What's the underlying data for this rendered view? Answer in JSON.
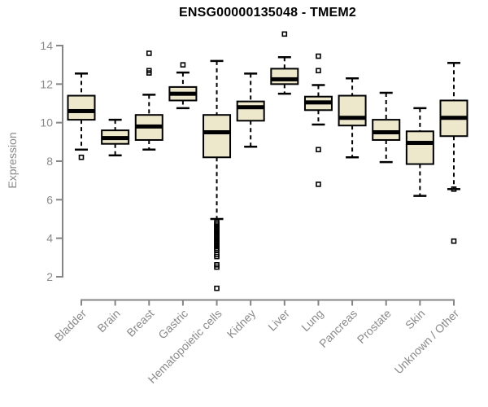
{
  "colors": {
    "box_fill": "#EDE8CC",
    "ink": "#000000",
    "axis": "#858585",
    "text_gray": "#8a8a8a"
  },
  "chart_data": {
    "type": "boxplot",
    "title": "ENSG00000135048 - TMEM2",
    "ylabel": "Expression",
    "xlabel": "",
    "ylim": [
      2,
      14
    ],
    "yticks": [
      2,
      4,
      6,
      8,
      10,
      12,
      14
    ],
    "grid": false,
    "legend": "none",
    "categories": [
      "Bladder",
      "Brain",
      "Breast",
      "Gastric",
      "Hematopoietic cells",
      "Kidney",
      "Liver",
      "Lung",
      "Pancreas",
      "Prostate",
      "Skin",
      "Unknown / Other"
    ],
    "series": [
      {
        "category": "Bladder",
        "whisker_low": 8.6,
        "q1": 10.15,
        "median": 10.6,
        "q3": 11.4,
        "whisker_high": 12.55,
        "outliers": [
          8.2
        ]
      },
      {
        "category": "Brain",
        "whisker_low": 8.3,
        "q1": 8.9,
        "median": 9.2,
        "q3": 9.6,
        "whisker_high": 10.15,
        "outliers": []
      },
      {
        "category": "Breast",
        "whisker_low": 8.6,
        "q1": 9.1,
        "median": 9.8,
        "q3": 10.4,
        "whisker_high": 11.45,
        "outliers": [
          13.6,
          12.7,
          12.58
        ]
      },
      {
        "category": "Gastric",
        "whisker_low": 10.75,
        "q1": 11.15,
        "median": 11.5,
        "q3": 11.85,
        "whisker_high": 12.6,
        "outliers": [
          13.0
        ]
      },
      {
        "category": "Hematopoietic cells",
        "whisker_low": 5.0,
        "q1": 8.2,
        "median": 9.5,
        "q3": 10.4,
        "whisker_high": 13.2,
        "outliers": [
          4.82,
          4.73,
          4.64,
          4.55,
          4.46,
          4.37,
          4.28,
          4.19,
          4.1,
          4.01,
          3.92,
          3.83,
          3.74,
          3.65,
          3.56,
          3.47,
          3.38,
          3.15,
          3.05,
          2.62,
          2.5,
          1.4
        ]
      },
      {
        "category": "Kidney",
        "whisker_low": 8.75,
        "q1": 10.1,
        "median": 10.8,
        "q3": 11.1,
        "whisker_high": 12.55,
        "outliers": []
      },
      {
        "category": "Liver",
        "whisker_low": 11.5,
        "q1": 12.0,
        "median": 12.25,
        "q3": 12.8,
        "whisker_high": 13.4,
        "outliers": [
          14.6
        ]
      },
      {
        "category": "Lung",
        "whisker_low": 9.9,
        "q1": 10.65,
        "median": 11.05,
        "q3": 11.35,
        "whisker_high": 11.95,
        "outliers": [
          13.45,
          12.7,
          8.6,
          6.8
        ]
      },
      {
        "category": "Pancreas",
        "whisker_low": 8.2,
        "q1": 9.85,
        "median": 10.25,
        "q3": 11.4,
        "whisker_high": 12.3,
        "outliers": []
      },
      {
        "category": "Prostate",
        "whisker_low": 7.95,
        "q1": 9.1,
        "median": 9.5,
        "q3": 10.15,
        "whisker_high": 11.55,
        "outliers": []
      },
      {
        "category": "Skin",
        "whisker_low": 6.2,
        "q1": 7.85,
        "median": 8.95,
        "q3": 9.55,
        "whisker_high": 10.75,
        "outliers": []
      },
      {
        "category": "Unknown / Other",
        "whisker_low": 6.55,
        "q1": 9.3,
        "median": 10.25,
        "q3": 11.15,
        "whisker_high": 13.1,
        "outliers": [
          6.55,
          3.85
        ]
      }
    ]
  }
}
